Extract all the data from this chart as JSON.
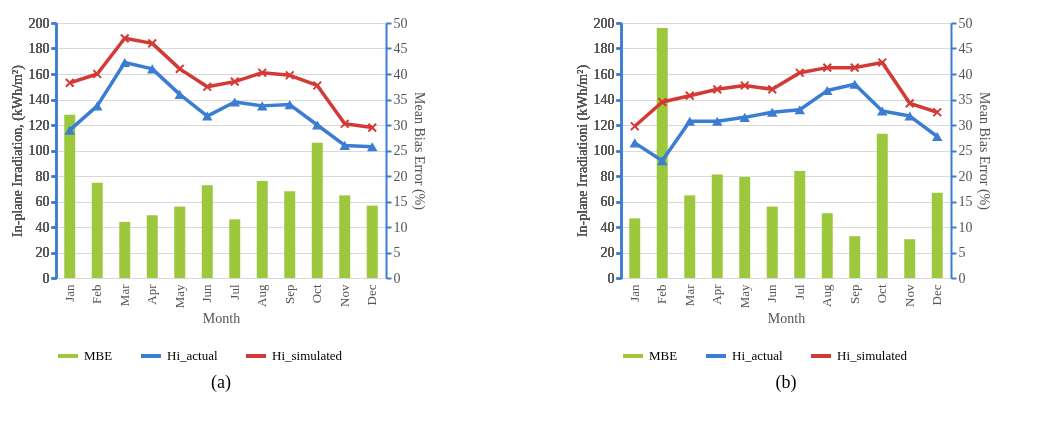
{
  "chart_data": [
    {
      "type": "bar",
      "xlabel": "Month",
      "ylabel": "In-plane Irradiation, (kWh/m²)",
      "y2label": "Mean Bias Error (%)",
      "annotations": [
        "(a)"
      ],
      "categories": [
        "Jan",
        "Feb",
        "Mar",
        "Apr",
        "May",
        "Jun",
        "Jul",
        "Aug",
        "Sep",
        "Oct",
        "Nov",
        "Dec"
      ],
      "series": [
        {
          "name": "MBE",
          "axis": "y2",
          "color": "#9dc83e",
          "values": [
            32,
            18.7,
            11,
            12.3,
            14,
            18.2,
            11.5,
            19,
            17,
            26.5,
            16.2,
            14.2
          ]
        },
        {
          "name": "Hi_actual",
          "type": "line",
          "marker": "triangle",
          "color": "#3a7dd3",
          "values": [
            116,
            135,
            169,
            164,
            144,
            127,
            138,
            135,
            136,
            120,
            104,
            103
          ]
        },
        {
          "name": "Hi_simulated",
          "type": "line",
          "marker": "cross",
          "color": "#d33a35",
          "values": [
            153,
            160,
            188,
            184,
            164,
            150,
            154,
            161,
            159,
            151,
            121,
            118
          ]
        }
      ],
      "ylim": [
        0,
        200
      ],
      "yticks": [
        0,
        20,
        40,
        60,
        80,
        100,
        120,
        140,
        160,
        180,
        200
      ],
      "y2lim": [
        0,
        50
      ],
      "y2ticks": [
        0,
        5,
        10,
        15,
        20,
        25,
        30,
        35,
        40,
        45,
        50
      ],
      "grid": "y",
      "legend": "bottom"
    },
    {
      "type": "bar",
      "xlabel": "Month",
      "ylabel": "In-plane Irradiationi (kWh/m²)",
      "y2label": "Mean Bias Error (%)",
      "annotations": [
        "(b)"
      ],
      "categories": [
        "Jan",
        "Feb",
        "Mar",
        "Apr",
        "May",
        "Jun",
        "Jul",
        "Aug",
        "Sep",
        "Oct",
        "Nov",
        "Dec"
      ],
      "series": [
        {
          "name": "MBE",
          "axis": "y2",
          "color": "#9dc83e",
          "values": [
            11.7,
            49,
            16.2,
            20.3,
            19.8,
            14,
            21,
            12.7,
            8.2,
            28.3,
            7.6,
            16.7
          ]
        },
        {
          "name": "Hi_actual",
          "type": "line",
          "marker": "triangle",
          "color": "#3a7dd3",
          "values": [
            106,
            92,
            123,
            123,
            126,
            130,
            132,
            147,
            152,
            131,
            127,
            111
          ]
        },
        {
          "name": "Hi_simulated",
          "type": "line",
          "marker": "cross",
          "color": "#d33a35",
          "values": [
            119,
            138,
            143,
            148,
            151,
            148,
            161,
            165,
            165,
            169,
            137,
            130
          ]
        }
      ],
      "ylim": [
        0,
        200
      ],
      "yticks": [
        0,
        20,
        40,
        60,
        80,
        100,
        120,
        140,
        160,
        180,
        200
      ],
      "y2lim": [
        0,
        50
      ],
      "y2ticks": [
        0,
        5,
        10,
        15,
        20,
        25,
        30,
        35,
        40,
        45,
        50
      ],
      "grid": "y",
      "legend": "bottom"
    }
  ]
}
